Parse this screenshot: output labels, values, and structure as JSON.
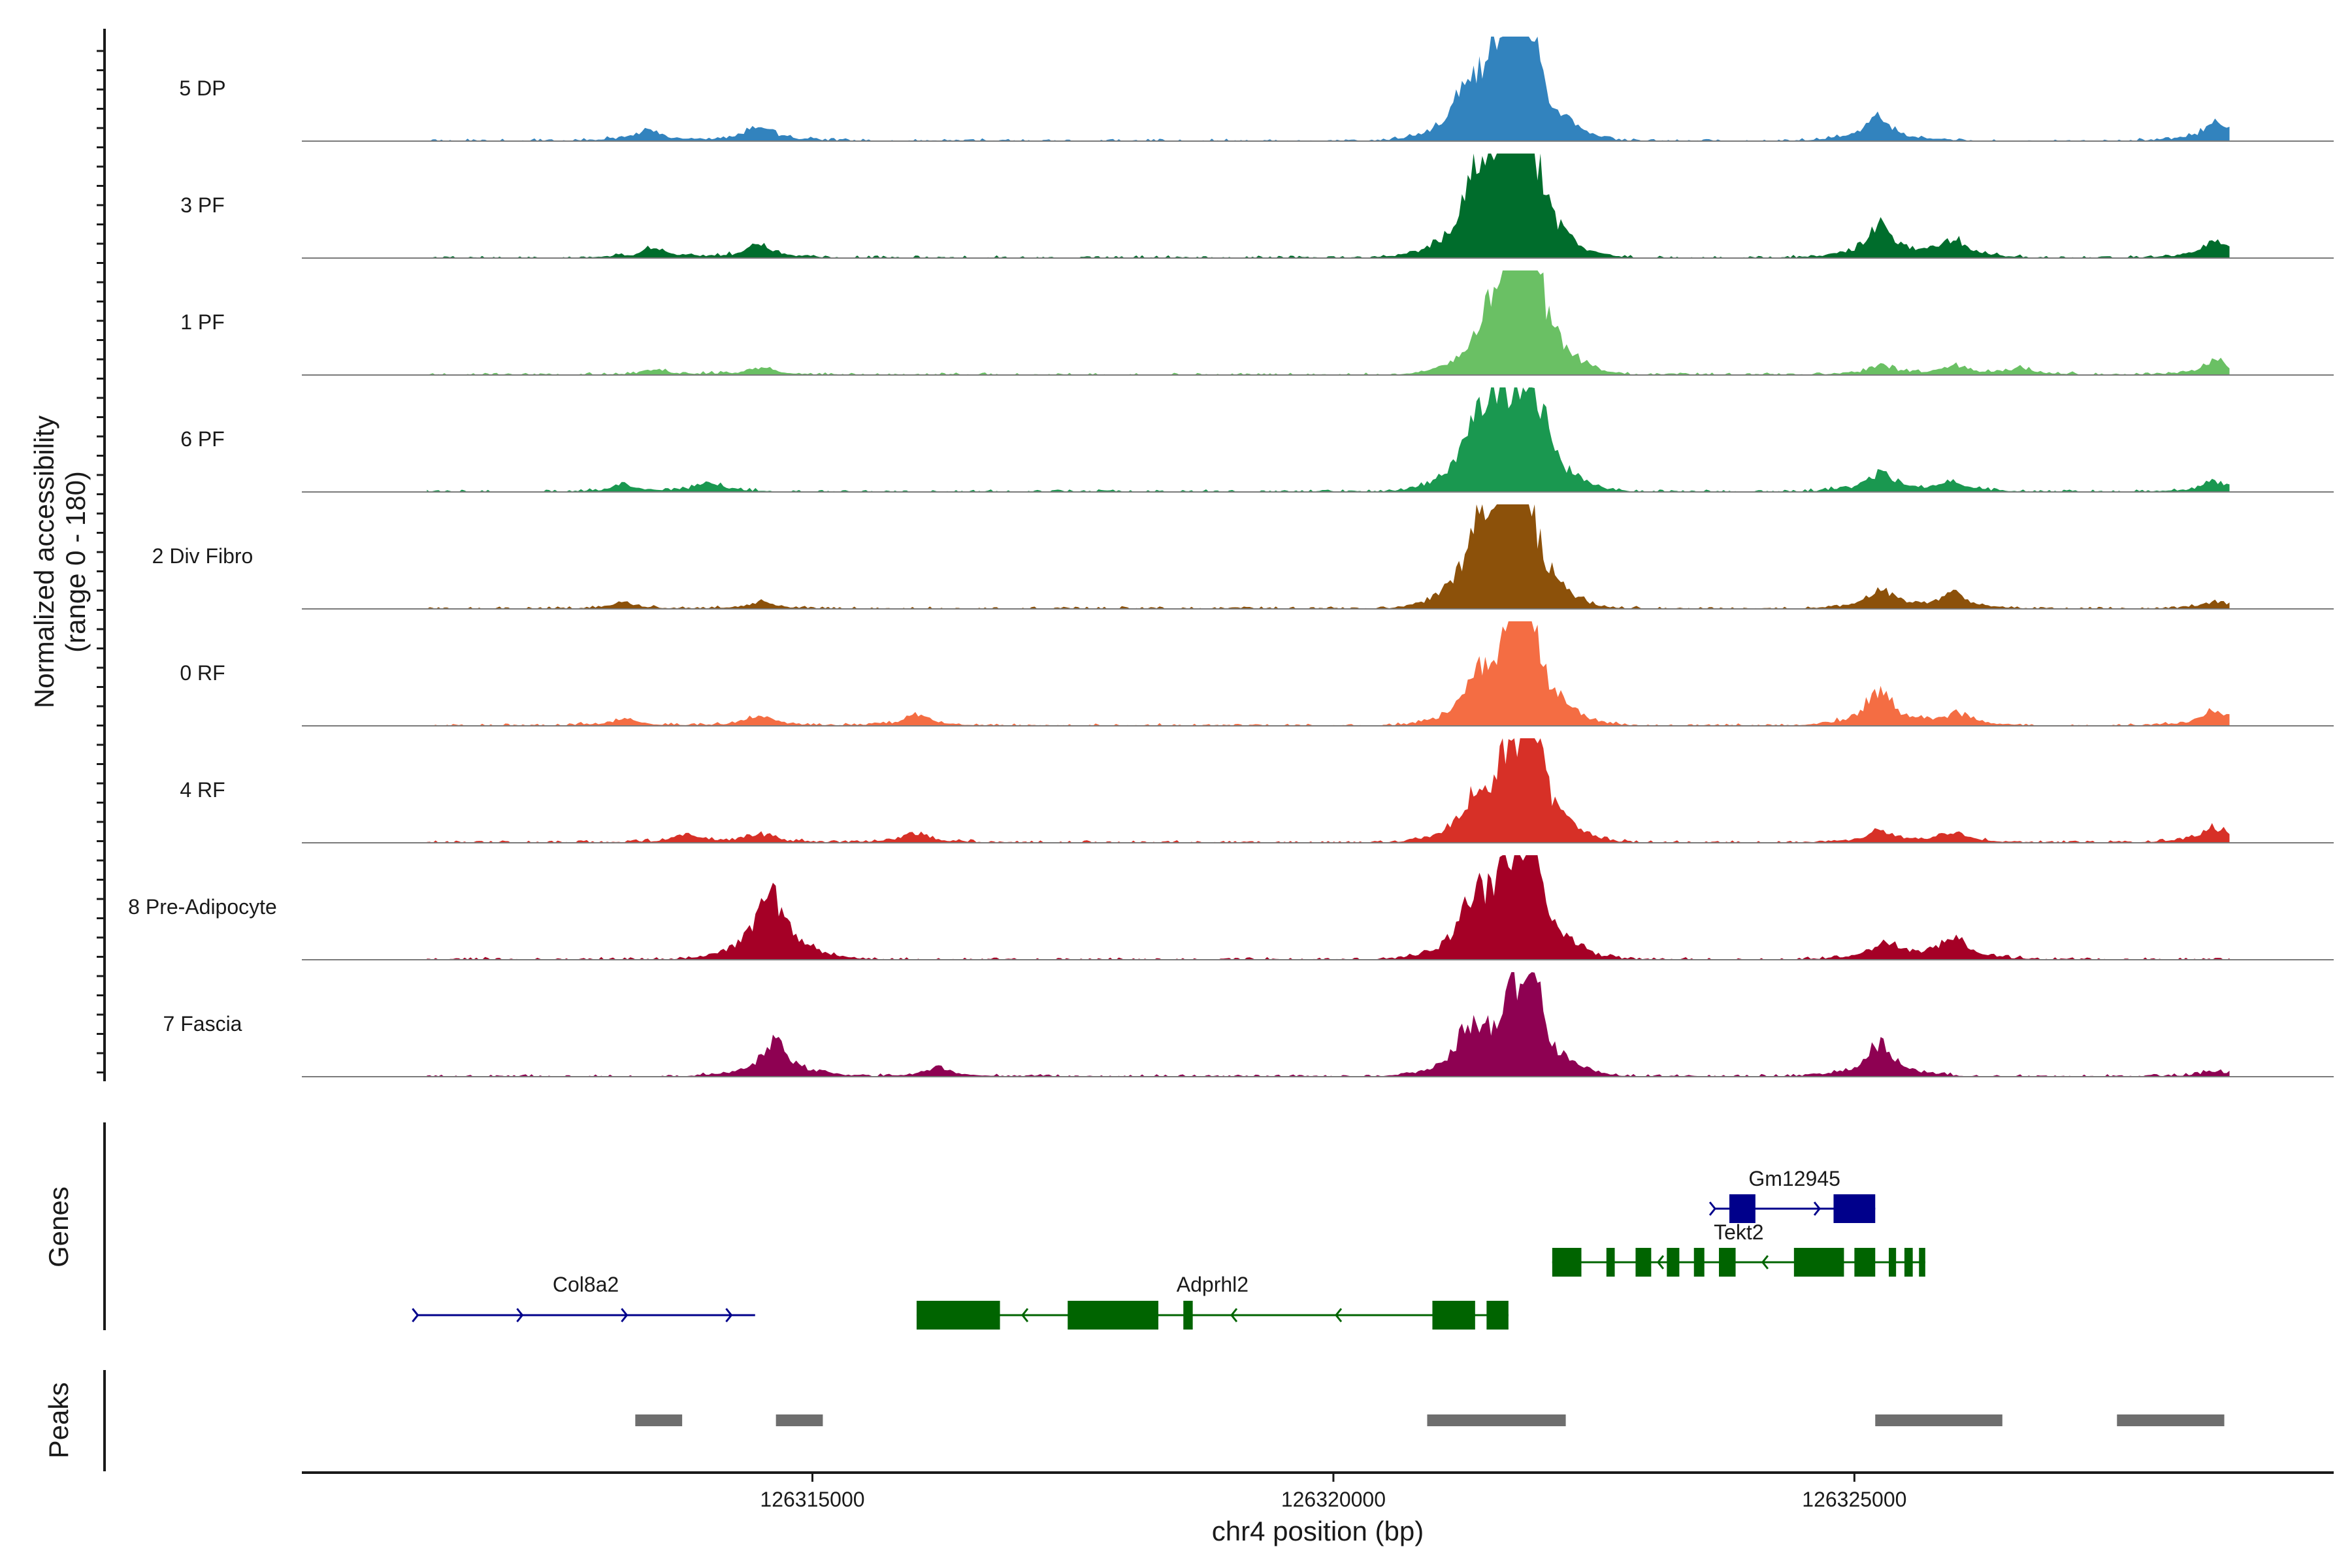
{
  "chart_data": {
    "type": "area",
    "title": "",
    "ylabel_line1": "Normalized accessibility",
    "ylabel_line2": "(range 0 - 180)",
    "xlabel": "chr4 position (bp)",
    "ylim": [
      0,
      180
    ],
    "xlim": [
      126310100,
      126329600
    ],
    "x_ticks": [
      126315000,
      126320000,
      126325000
    ],
    "x_tick_labels": [
      "126315000",
      "126320000",
      "126325000"
    ],
    "tracks_label": "Genes",
    "peaks_label": "Peaks",
    "series": [
      {
        "name": "5 DP",
        "color": "#3283BE",
        "shape": [
          [
            0.0,
            4
          ],
          [
            0.03,
            7
          ],
          [
            0.04,
            5
          ],
          [
            0.08,
            10
          ],
          [
            0.12,
            20
          ],
          [
            0.16,
            14
          ],
          [
            0.2,
            8
          ],
          [
            0.24,
            10
          ],
          [
            0.3,
            16
          ],
          [
            0.36,
            8
          ],
          [
            0.4,
            8
          ],
          [
            0.42,
            10
          ],
          [
            0.45,
            20
          ],
          [
            0.48,
            30
          ],
          [
            0.52,
            36
          ],
          [
            0.55,
            42
          ],
          [
            0.58,
            40
          ],
          [
            0.62,
            45
          ],
          [
            0.66,
            42
          ],
          [
            0.7,
            38
          ],
          [
            0.75,
            48
          ],
          [
            0.8,
            62
          ],
          [
            0.84,
            70
          ],
          [
            0.88,
            60
          ],
          [
            0.9,
            48
          ],
          [
            0.95,
            40
          ],
          [
            1.0,
            34
          ]
        ],
        "peaks": [
          [
            126321250,
            35
          ],
          [
            126321650,
            55
          ],
          [
            126321780,
            38
          ],
          [
            126321850,
            108
          ],
          [
            126321500,
            45
          ],
          [
            126325230,
            28
          ],
          [
            126328480,
            22
          ],
          [
            126314500,
            18
          ],
          [
            126313400,
            12
          ]
        ]
      },
      {
        "name": "3 PF",
        "color": "#006D2C",
        "shape": [
          [
            0.0,
            4
          ],
          [
            0.03,
            7
          ],
          [
            0.06,
            5
          ],
          [
            0.1,
            12
          ],
          [
            0.14,
            16
          ],
          [
            0.18,
            9
          ],
          [
            0.24,
            10
          ],
          [
            0.3,
            12
          ],
          [
            0.36,
            8
          ],
          [
            0.42,
            8
          ],
          [
            0.46,
            16
          ],
          [
            0.5,
            30
          ],
          [
            0.55,
            40
          ],
          [
            0.6,
            44
          ],
          [
            0.66,
            40
          ],
          [
            0.72,
            46
          ],
          [
            0.78,
            48
          ],
          [
            0.84,
            50
          ],
          [
            0.88,
            48
          ],
          [
            0.92,
            42
          ],
          [
            1.0,
            36
          ]
        ],
        "peaks": [
          [
            126321350,
            60
          ],
          [
            126321650,
            90
          ],
          [
            126321880,
            110
          ],
          [
            126321550,
            40
          ],
          [
            126325250,
            38
          ],
          [
            126325950,
            22
          ],
          [
            126328450,
            18
          ],
          [
            126314500,
            15
          ],
          [
            126313500,
            12
          ]
        ]
      },
      {
        "name": "1 PF",
        "color": "#6AC064",
        "shape": [
          [
            0.0,
            3
          ],
          [
            0.04,
            6
          ],
          [
            0.1,
            8
          ],
          [
            0.16,
            5
          ],
          [
            0.22,
            7
          ],
          [
            0.3,
            6
          ],
          [
            0.38,
            6
          ],
          [
            0.44,
            10
          ],
          [
            0.5,
            18
          ],
          [
            0.56,
            24
          ],
          [
            0.62,
            34
          ],
          [
            0.68,
            38
          ],
          [
            0.74,
            42
          ],
          [
            0.8,
            46
          ],
          [
            0.86,
            50
          ],
          [
            0.92,
            48
          ],
          [
            1.0,
            40
          ]
        ],
        "peaks": [
          [
            126321500,
            40
          ],
          [
            126321700,
            70
          ],
          [
            126321880,
            135
          ],
          [
            126325250,
            10
          ],
          [
            126325950,
            10
          ],
          [
            126326600,
            8
          ],
          [
            126328470,
            16
          ],
          [
            126314500,
            8
          ],
          [
            126313500,
            6
          ]
        ]
      },
      {
        "name": "6 PF",
        "color": "#1A9850",
        "shape": [
          [
            0.0,
            4
          ],
          [
            0.04,
            6
          ],
          [
            0.08,
            8
          ],
          [
            0.12,
            12
          ],
          [
            0.16,
            10
          ],
          [
            0.22,
            10
          ],
          [
            0.28,
            12
          ],
          [
            0.34,
            8
          ],
          [
            0.4,
            8
          ],
          [
            0.44,
            14
          ],
          [
            0.5,
            26
          ],
          [
            0.56,
            32
          ],
          [
            0.62,
            36
          ],
          [
            0.68,
            42
          ],
          [
            0.74,
            46
          ],
          [
            0.8,
            50
          ],
          [
            0.86,
            52
          ],
          [
            0.92,
            48
          ],
          [
            1.0,
            40
          ]
        ],
        "peaks": [
          [
            126321350,
            45
          ],
          [
            126321650,
            70
          ],
          [
            126321900,
            118
          ],
          [
            126321500,
            30
          ],
          [
            126325250,
            22
          ],
          [
            126325950,
            12
          ],
          [
            126328470,
            12
          ],
          [
            126314000,
            10
          ],
          [
            126313200,
            8
          ]
        ]
      },
      {
        "name": "2 Div Fibro",
        "color": "#8C510A",
        "shape": [
          [
            0.0,
            4
          ],
          [
            0.04,
            6
          ],
          [
            0.1,
            8
          ],
          [
            0.16,
            6
          ],
          [
            0.22,
            8
          ],
          [
            0.28,
            10
          ],
          [
            0.34,
            8
          ],
          [
            0.4,
            8
          ],
          [
            0.44,
            14
          ],
          [
            0.48,
            30
          ],
          [
            0.52,
            46
          ],
          [
            0.56,
            56
          ],
          [
            0.62,
            60
          ],
          [
            0.68,
            58
          ],
          [
            0.74,
            62
          ],
          [
            0.8,
            66
          ],
          [
            0.86,
            62
          ],
          [
            0.92,
            52
          ],
          [
            1.0,
            42
          ]
        ],
        "peaks": [
          [
            126321400,
            60
          ],
          [
            126321700,
            70
          ],
          [
            126321820,
            108
          ],
          [
            126321550,
            40
          ],
          [
            126325250,
            22
          ],
          [
            126325950,
            18
          ],
          [
            126328480,
            8
          ],
          [
            126314500,
            8
          ],
          [
            126313200,
            6
          ]
        ]
      },
      {
        "name": "0 RF",
        "color": "#F46D43",
        "shape": [
          [
            0.0,
            4
          ],
          [
            0.04,
            6
          ],
          [
            0.1,
            8
          ],
          [
            0.16,
            6
          ],
          [
            0.22,
            8
          ],
          [
            0.3,
            8
          ],
          [
            0.36,
            6
          ],
          [
            0.42,
            8
          ],
          [
            0.46,
            14
          ],
          [
            0.52,
            28
          ],
          [
            0.58,
            34
          ],
          [
            0.64,
            40
          ],
          [
            0.7,
            44
          ],
          [
            0.76,
            46
          ],
          [
            0.82,
            50
          ],
          [
            0.88,
            48
          ],
          [
            0.94,
            42
          ],
          [
            1.0,
            36
          ]
        ],
        "peaks": [
          [
            126321400,
            40
          ],
          [
            126321700,
            60
          ],
          [
            126321850,
            125
          ],
          [
            126325240,
            40
          ],
          [
            126326000,
            14
          ],
          [
            126328450,
            18
          ],
          [
            126314500,
            12
          ],
          [
            126316000,
            12
          ],
          [
            126313200,
            8
          ]
        ]
      },
      {
        "name": "4 RF",
        "color": "#D73027",
        "shape": [
          [
            0.0,
            4
          ],
          [
            0.04,
            6
          ],
          [
            0.1,
            8
          ],
          [
            0.16,
            6
          ],
          [
            0.22,
            8
          ],
          [
            0.3,
            8
          ],
          [
            0.36,
            6
          ],
          [
            0.42,
            8
          ],
          [
            0.46,
            14
          ],
          [
            0.52,
            24
          ],
          [
            0.58,
            28
          ],
          [
            0.64,
            34
          ],
          [
            0.7,
            38
          ],
          [
            0.76,
            42
          ],
          [
            0.82,
            46
          ],
          [
            0.88,
            44
          ],
          [
            0.94,
            40
          ],
          [
            1.0,
            34
          ]
        ],
        "peaks": [
          [
            126321300,
            30
          ],
          [
            126321650,
            60
          ],
          [
            126321880,
            132
          ],
          [
            126325250,
            14
          ],
          [
            126325950,
            12
          ],
          [
            126328450,
            18
          ],
          [
            126314500,
            10
          ],
          [
            126316000,
            12
          ],
          [
            126313800,
            10
          ]
        ]
      },
      {
        "name": "8 Pre-Adipocyte",
        "color": "#A50026",
        "shape": [
          [
            0.0,
            6
          ],
          [
            0.04,
            10
          ],
          [
            0.08,
            16
          ],
          [
            0.12,
            12
          ],
          [
            0.16,
            20
          ],
          [
            0.2,
            26
          ],
          [
            0.24,
            30
          ],
          [
            0.3,
            22
          ],
          [
            0.36,
            12
          ],
          [
            0.42,
            10
          ],
          [
            0.46,
            20
          ],
          [
            0.52,
            40
          ],
          [
            0.56,
            50
          ],
          [
            0.62,
            54
          ],
          [
            0.68,
            56
          ],
          [
            0.74,
            60
          ],
          [
            0.8,
            64
          ],
          [
            0.86,
            60
          ],
          [
            0.92,
            52
          ],
          [
            1.0,
            40
          ]
        ],
        "peaks": [
          [
            126321350,
            58
          ],
          [
            126321650,
            70
          ],
          [
            126321880,
            125
          ],
          [
            126314550,
            58
          ],
          [
            126314700,
            30
          ],
          [
            126325950,
            28
          ],
          [
            126325300,
            20
          ]
        ]
      },
      {
        "name": "7 Fascia",
        "color": "#8E0152",
        "shape": [
          [
            0.0,
            5
          ],
          [
            0.04,
            8
          ],
          [
            0.08,
            10
          ],
          [
            0.12,
            12
          ],
          [
            0.16,
            10
          ],
          [
            0.22,
            10
          ],
          [
            0.28,
            12
          ],
          [
            0.34,
            8
          ],
          [
            0.4,
            8
          ],
          [
            0.44,
            16
          ],
          [
            0.5,
            30
          ],
          [
            0.56,
            38
          ],
          [
            0.62,
            42
          ],
          [
            0.68,
            44
          ],
          [
            0.74,
            48
          ],
          [
            0.8,
            52
          ],
          [
            0.86,
            50
          ],
          [
            0.92,
            44
          ],
          [
            1.0,
            36
          ]
        ],
        "peaks": [
          [
            126321300,
            42
          ],
          [
            126321650,
            50
          ],
          [
            126321880,
            110
          ],
          [
            126314650,
            40
          ],
          [
            126325250,
            38
          ],
          [
            126316200,
            10
          ],
          [
            126328450,
            6
          ]
        ]
      }
    ],
    "genes": [
      {
        "name": "Col8a2",
        "strand": "+",
        "color": "#00008B",
        "start": 126311200,
        "end": 126314450,
        "exons": []
      },
      {
        "name": "Adprhl2",
        "strand": "-",
        "color": "#006400",
        "start": 126316000,
        "end": 126321680,
        "exons": [
          [
            126316000,
            126316800
          ],
          [
            126317450,
            126318320
          ],
          [
            126318560,
            126318650
          ],
          [
            126320950,
            126321360
          ],
          [
            126321470,
            126321680
          ]
        ]
      },
      {
        "name": "Tekt2",
        "strand": "-",
        "color": "#006400",
        "start": 126322100,
        "end": 126325680,
        "exons": [
          [
            126322100,
            126322380
          ],
          [
            126322620,
            126322700
          ],
          [
            126322900,
            126323050
          ],
          [
            126323200,
            126323320
          ],
          [
            126323460,
            126323560
          ],
          [
            126323700,
            126323860
          ],
          [
            126324420,
            126324900
          ],
          [
            126325000,
            126325200
          ],
          [
            126325330,
            126325400
          ],
          [
            126325480,
            126325560
          ],
          [
            126325620,
            126325680
          ]
        ]
      },
      {
        "name": "Gm12945",
        "strand": "+",
        "color": "#00008B",
        "start": 126323650,
        "end": 126325200,
        "exons": [
          [
            126323800,
            126324050
          ],
          [
            126324800,
            126325200
          ]
        ]
      }
    ],
    "peak_regions": [
      [
        126313300,
        126313750
      ],
      [
        126314650,
        126315100
      ],
      [
        126320900,
        126322230
      ],
      [
        126325200,
        126326420
      ],
      [
        126327520,
        126328550
      ]
    ]
  }
}
